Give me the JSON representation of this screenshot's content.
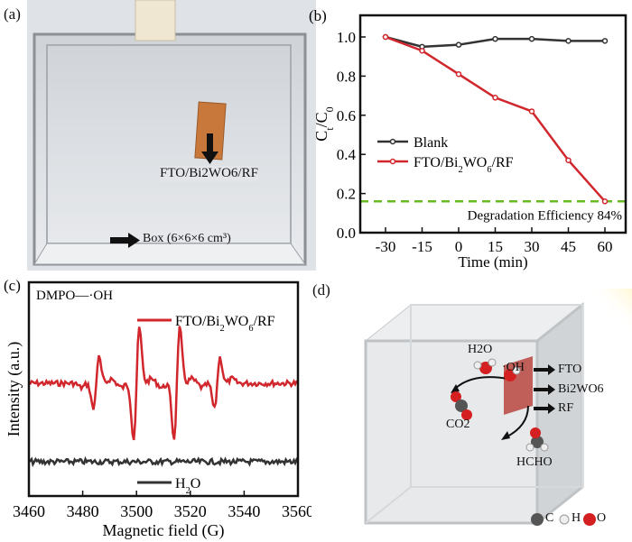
{
  "panels": {
    "a": {
      "label": "(a)",
      "sample_label": "FTO/Bi2WO6/RF",
      "box_label": "Box (6×6×6 cm³)"
    },
    "d": {
      "label": "(d)",
      "molecules": {
        "water": "H2O",
        "hydroxyl": "·OH",
        "co2": "CO2",
        "hcho": "HCHO"
      },
      "layers": [
        "FTO",
        "Bi2WO6",
        "RF"
      ],
      "legend": [
        {
          "symbol": "C",
          "color": "#555555"
        },
        {
          "symbol": "H",
          "color": "#e6e6e6"
        },
        {
          "symbol": "O",
          "color": "#d42020"
        }
      ]
    }
  },
  "chart_data": [
    {
      "panel": "(b)",
      "type": "line",
      "xlabel": "Time (min)",
      "ylabel": "Ct/C0",
      "x": [
        -30,
        -15,
        0,
        15,
        30,
        45,
        60
      ],
      "xlim": [
        -40,
        68
      ],
      "ylim": [
        0,
        1.1
      ],
      "yticks": [
        "0.0",
        "0.2",
        "0.4",
        "0.6",
        "0.8",
        "1.0"
      ],
      "xticks": [
        "-30",
        "-15",
        "0",
        "15",
        "30",
        "45",
        "60"
      ],
      "series": [
        {
          "name": "Blank",
          "color": "#333333",
          "values": [
            1.0,
            0.95,
            0.96,
            0.99,
            0.99,
            0.98,
            0.98
          ]
        },
        {
          "name": "FTO/Bi2WO6/RF",
          "color": "#d0262c",
          "values": [
            1.0,
            0.93,
            0.81,
            0.69,
            0.62,
            0.37,
            0.16
          ]
        }
      ],
      "reference_line": {
        "value": 0.16,
        "color": "#66bb22",
        "style": "dashed"
      },
      "annotation": "Degradation Efficiency 84%",
      "legend": "center-left"
    },
    {
      "panel": "(c)",
      "type": "line",
      "title": "DMPO—·OH",
      "xlabel": "Magnetic field (G)",
      "ylabel": "Intensity (a.u.)",
      "xlim": [
        3460,
        3560
      ],
      "xticks": [
        "3460",
        "3480",
        "3500",
        "3520",
        "3540",
        "3560"
      ],
      "series": [
        {
          "name": "FTO/Bi2WO6/RF",
          "color": "#d0262c",
          "peaks": [
            [
              3485,
              1
            ],
            [
              3500,
              2
            ],
            [
              3515,
              2
            ],
            [
              3530,
              1
            ]
          ]
        },
        {
          "name": "H2O",
          "color": "#333333",
          "peaks": []
        }
      ],
      "legend": "top-right / bottom-center"
    }
  ]
}
